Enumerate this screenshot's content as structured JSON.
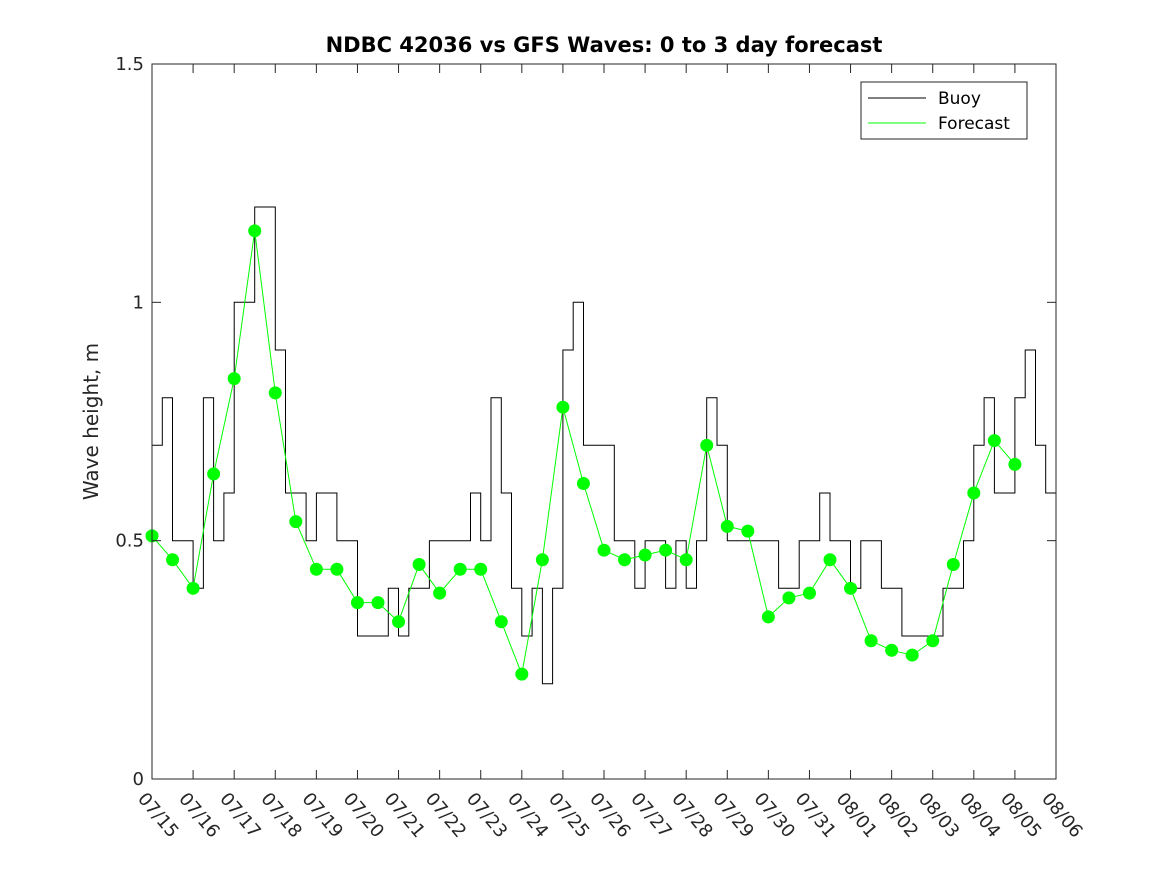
{
  "chart_data": {
    "type": "line",
    "title": "NDBC 42036 vs GFS Waves: 0 to 3 day forecast",
    "xlabel": "",
    "ylabel": "Wave height, m",
    "xlim": [
      "07/15",
      "08/06"
    ],
    "ylim": [
      0,
      1.5
    ],
    "x_ticks": [
      "07/15",
      "07/16",
      "07/17",
      "07/18",
      "07/19",
      "07/20",
      "07/21",
      "07/22",
      "07/23",
      "07/24",
      "07/25",
      "07/26",
      "07/27",
      "07/28",
      "07/29",
      "07/30",
      "07/31",
      "08/01",
      "08/02",
      "08/03",
      "08/04",
      "08/05",
      "08/06"
    ],
    "y_ticks": [
      "0",
      "0.5",
      "1",
      "1.5"
    ],
    "grid": false,
    "legend_position": "top-right",
    "colors": {
      "buoy": "#000000",
      "forecast": "#00ff00"
    },
    "series": [
      {
        "name": "Buoy",
        "x": [
          "07/15",
          "07/15 06:00",
          "07/15 12:00",
          "07/15 18:00",
          "07/16",
          "07/16 06:00",
          "07/16 12:00",
          "07/16 18:00",
          "07/17",
          "07/17 06:00",
          "07/17 12:00",
          "07/17 18:00",
          "07/18",
          "07/18 06:00",
          "07/18 12:00",
          "07/18 18:00",
          "07/19",
          "07/19 06:00",
          "07/19 12:00",
          "07/19 18:00",
          "07/20",
          "07/20 06:00",
          "07/20 12:00",
          "07/20 18:00",
          "07/21",
          "07/21 06:00",
          "07/21 12:00",
          "07/21 18:00",
          "07/22",
          "07/22 06:00",
          "07/22 12:00",
          "07/22 18:00",
          "07/23",
          "07/23 06:00",
          "07/23 12:00",
          "07/23 18:00",
          "07/24",
          "07/24 06:00",
          "07/24 12:00",
          "07/24 18:00",
          "07/25",
          "07/25 06:00",
          "07/25 12:00",
          "07/25 18:00",
          "07/26",
          "07/26 06:00",
          "07/26 12:00",
          "07/26 18:00",
          "07/27",
          "07/27 06:00",
          "07/27 12:00",
          "07/27 18:00",
          "07/28",
          "07/28 06:00",
          "07/28 12:00",
          "07/28 18:00",
          "07/29",
          "07/29 06:00",
          "07/29 12:00",
          "07/29 18:00",
          "07/30",
          "07/30 06:00",
          "07/30 12:00",
          "07/30 18:00",
          "07/31",
          "07/31 06:00",
          "07/31 12:00",
          "07/31 18:00",
          "08/01",
          "08/01 06:00",
          "08/01 12:00",
          "08/01 18:00",
          "08/02",
          "08/02 06:00",
          "08/02 12:00",
          "08/02 18:00",
          "08/03",
          "08/03 06:00",
          "08/03 12:00",
          "08/03 18:00",
          "08/04",
          "08/04 06:00",
          "08/04 12:00",
          "08/04 18:00",
          "08/05",
          "08/05 06:00",
          "08/05 12:00",
          "08/05 18:00",
          "08/06"
        ],
        "values": [
          0.7,
          0.8,
          0.5,
          0.5,
          0.4,
          0.8,
          0.5,
          0.6,
          1.0,
          1.0,
          1.2,
          1.2,
          0.9,
          0.6,
          0.6,
          0.5,
          0.6,
          0.6,
          0.5,
          0.5,
          0.3,
          0.3,
          0.3,
          0.4,
          0.3,
          0.4,
          0.4,
          0.5,
          0.5,
          0.5,
          0.5,
          0.6,
          0.5,
          0.8,
          0.6,
          0.4,
          0.3,
          0.4,
          0.2,
          0.4,
          0.9,
          1.0,
          0.7,
          0.7,
          0.7,
          0.5,
          0.5,
          0.4,
          0.5,
          0.5,
          0.4,
          0.5,
          0.4,
          0.5,
          0.8,
          0.7,
          0.5,
          0.5,
          0.5,
          0.5,
          0.5,
          0.4,
          0.4,
          0.5,
          0.5,
          0.6,
          0.5,
          0.5,
          0.4,
          0.5,
          0.5,
          0.4,
          0.4,
          0.3,
          0.3,
          0.3,
          0.3,
          0.4,
          0.4,
          0.5,
          0.7,
          0.8,
          0.6,
          0.6,
          0.8,
          0.9,
          0.7,
          0.6,
          0.5
        ]
      },
      {
        "name": "Forecast",
        "x": [
          "07/15",
          "07/15 12:00",
          "07/16",
          "07/16 12:00",
          "07/17",
          "07/17 12:00",
          "07/18",
          "07/18 12:00",
          "07/19",
          "07/19 12:00",
          "07/20",
          "07/20 12:00",
          "07/21",
          "07/21 12:00",
          "07/22",
          "07/22 12:00",
          "07/23",
          "07/23 12:00",
          "07/24",
          "07/24 12:00",
          "07/25",
          "07/25 12:00",
          "07/26",
          "07/26 12:00",
          "07/27",
          "07/27 12:00",
          "07/28",
          "07/28 12:00",
          "07/29",
          "07/29 12:00",
          "07/30",
          "07/30 12:00",
          "07/31",
          "07/31 12:00",
          "08/01",
          "08/01 12:00",
          "08/02",
          "08/02 12:00",
          "08/03",
          "08/03 12:00",
          "08/04",
          "08/04 12:00",
          "08/05"
        ],
        "values": [
          0.51,
          0.46,
          0.4,
          0.64,
          0.84,
          1.15,
          0.81,
          0.54,
          0.44,
          0.44,
          0.37,
          0.37,
          0.33,
          0.45,
          0.39,
          0.44,
          0.44,
          0.33,
          0.22,
          0.46,
          0.78,
          0.62,
          0.48,
          0.46,
          0.47,
          0.48,
          0.46,
          0.7,
          0.53,
          0.52,
          0.34,
          0.38,
          0.39,
          0.46,
          0.4,
          0.29,
          0.27,
          0.26,
          0.29,
          0.45,
          0.6,
          0.71,
          0.66
        ]
      }
    ]
  }
}
